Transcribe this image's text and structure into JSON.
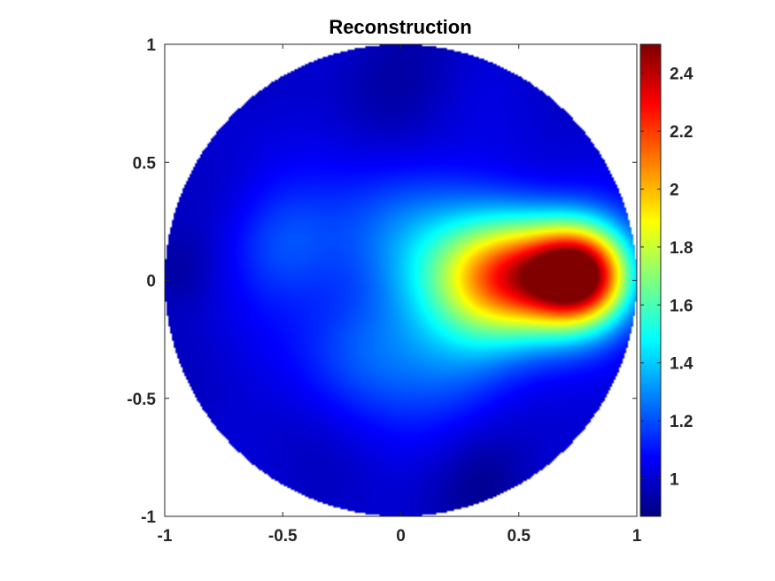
{
  "chart_data": {
    "type": "heatmap",
    "title": "Reconstruction",
    "xlabel": "",
    "ylabel": "",
    "xlim": [
      -1,
      1
    ],
    "ylim": [
      -1,
      1
    ],
    "x_ticks": [
      "-1",
      "-0.5",
      "0",
      "0.5",
      "1"
    ],
    "y_ticks": [
      "1",
      "0.5",
      "0",
      "-0.5",
      "-1"
    ],
    "x_tick_values": [
      -1,
      -0.5,
      0,
      0.5,
      1
    ],
    "y_tick_values": [
      1,
      0.5,
      0,
      -0.5,
      -1
    ],
    "domain": "unit disk",
    "colormap": "jet",
    "colorbar": {
      "min": 0.87,
      "max": 2.5,
      "ticks": [
        "2.4",
        "2.2",
        "2",
        "1.8",
        "1.6",
        "1.4",
        "1.2",
        "1"
      ],
      "tick_values": [
        2.4,
        2.2,
        2.0,
        1.8,
        1.6,
        1.4,
        1.2,
        1.0
      ],
      "placement": "right"
    },
    "background_value": 1.0,
    "features": [
      {
        "x": 0.76,
        "y": 0.02,
        "peak": 2.5,
        "spread": 0.15
      },
      {
        "x": 0.5,
        "y": 0.02,
        "peak": 1.85,
        "spread": 0.18
      },
      {
        "x": 0.3,
        "y": 0.0,
        "peak": 1.45,
        "spread": 0.2
      },
      {
        "x": 0.0,
        "y": 0.2,
        "peak": 1.22,
        "spread": 0.22
      },
      {
        "x": -0.5,
        "y": 0.15,
        "peak": 1.18,
        "spread": 0.18
      },
      {
        "x": -0.15,
        "y": -0.3,
        "peak": 1.2,
        "spread": 0.2
      },
      {
        "x": 0.25,
        "y": -0.35,
        "peak": 1.17,
        "spread": 0.2
      },
      {
        "x": 0.35,
        "y": -0.85,
        "peak": 0.9,
        "spread": 0.15
      },
      {
        "x": 0.0,
        "y": 0.9,
        "peak": 0.93,
        "spread": 0.18
      },
      {
        "x": -0.95,
        "y": 0.05,
        "peak": 0.92,
        "spread": 0.12
      }
    ]
  }
}
